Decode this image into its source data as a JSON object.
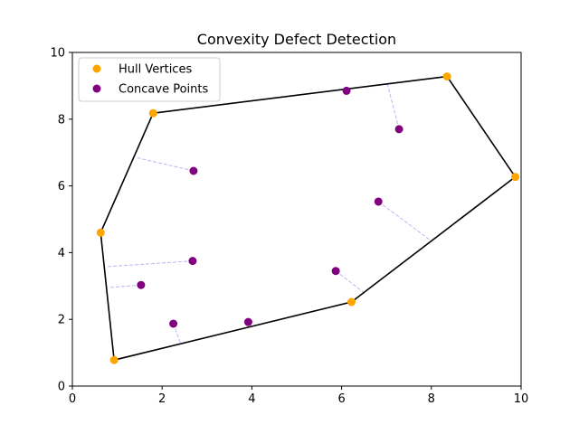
{
  "chart_data": {
    "type": "scatter",
    "title": "Convexity Defect Detection",
    "xlabel": "",
    "ylabel": "",
    "xlim": [
      0,
      10
    ],
    "ylim": [
      0,
      10
    ],
    "xticks": [
      0,
      2,
      4,
      6,
      8,
      10
    ],
    "yticks": [
      0,
      2,
      4,
      6,
      8,
      10
    ],
    "xtick_labels": [
      "0",
      "2",
      "4",
      "6",
      "8",
      "10"
    ],
    "ytick_labels": [
      "0",
      "2",
      "4",
      "6",
      "8",
      "10"
    ],
    "grid": false,
    "legend_position": "top-left",
    "hull_polygon": {
      "color": "#000000",
      "points": [
        [
          0.93,
          0.78
        ],
        [
          6.22,
          2.52
        ],
        [
          9.87,
          6.27
        ],
        [
          8.35,
          9.28
        ],
        [
          1.8,
          8.18
        ],
        [
          0.63,
          4.6
        ]
      ]
    },
    "series": [
      {
        "name": "Hull Vertices",
        "color": "#FFA500",
        "points": [
          [
            0.93,
            0.78
          ],
          [
            6.22,
            2.52
          ],
          [
            9.87,
            6.27
          ],
          [
            8.35,
            9.28
          ],
          [
            1.8,
            8.18
          ],
          [
            0.63,
            4.6
          ]
        ]
      },
      {
        "name": "Concave Points",
        "color": "#800080",
        "points": [
          [
            6.11,
            8.85
          ],
          [
            7.28,
            7.7
          ],
          [
            2.7,
            6.45
          ],
          [
            6.82,
            5.53
          ],
          [
            2.68,
            3.75
          ],
          [
            5.87,
            3.45
          ],
          [
            1.53,
            3.03
          ],
          [
            2.25,
            1.87
          ],
          [
            3.92,
            1.92
          ]
        ]
      }
    ],
    "defect_links": {
      "color": "#9999EE",
      "segments": [
        [
          [
            7.28,
            7.7
          ],
          [
            7.02,
            9.06
          ]
        ],
        [
          [
            2.7,
            6.45
          ],
          [
            1.42,
            6.85
          ]
        ],
        [
          [
            6.82,
            5.53
          ],
          [
            8.0,
            4.35
          ]
        ],
        [
          [
            2.68,
            3.75
          ],
          [
            0.78,
            3.58
          ]
        ],
        [
          [
            1.53,
            3.03
          ],
          [
            0.81,
            2.95
          ]
        ],
        [
          [
            5.87,
            3.45
          ],
          [
            6.5,
            2.8
          ]
        ],
        [
          [
            2.25,
            1.87
          ],
          [
            2.42,
            1.25
          ]
        ]
      ]
    }
  }
}
